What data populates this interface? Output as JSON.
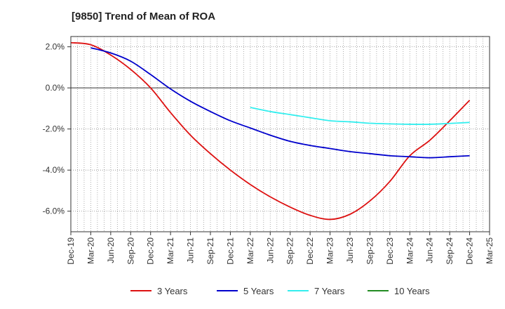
{
  "chart_data": {
    "type": "line",
    "title": "[9850]  Trend of Mean of ROA",
    "xlabel": "",
    "ylabel": "",
    "x_ticks": [
      "Dec-19",
      "Mar-20",
      "Jun-20",
      "Sep-20",
      "Dec-20",
      "Mar-21",
      "Jun-21",
      "Sep-21",
      "Dec-21",
      "Mar-22",
      "Jun-22",
      "Sep-22",
      "Dec-22",
      "Mar-23",
      "Jun-23",
      "Sep-23",
      "Dec-23",
      "Mar-24",
      "Jun-24",
      "Sep-24",
      "Dec-24",
      "Mar-25"
    ],
    "y_ticks": [
      2.0,
      0.0,
      -2.0,
      -4.0,
      -6.0
    ],
    "y_tick_labels": [
      "2.0%",
      "0.0%",
      "-2.0%",
      "-4.0%",
      "-6.0%"
    ],
    "ylim": [
      -7.0,
      2.5
    ],
    "grid": "vertical dotted, horizontal dotted, solid zero line",
    "legend_position": "bottom",
    "series": [
      {
        "name": "3 Years",
        "color": "#dd1111",
        "points": [
          [
            "Dec-19",
            2.2
          ],
          [
            "Mar-20",
            2.1
          ],
          [
            "Jun-20",
            1.6
          ],
          [
            "Sep-20",
            0.9
          ],
          [
            "Dec-20",
            0.0
          ],
          [
            "Mar-21",
            -1.2
          ],
          [
            "Jun-21",
            -2.3
          ],
          [
            "Sep-21",
            -3.2
          ],
          [
            "Dec-21",
            -4.0
          ],
          [
            "Mar-22",
            -4.7
          ],
          [
            "Jun-22",
            -5.3
          ],
          [
            "Sep-22",
            -5.8
          ],
          [
            "Dec-22",
            -6.2
          ],
          [
            "Mar-23",
            -6.4
          ],
          [
            "Jun-23",
            -6.15
          ],
          [
            "Sep-23",
            -5.5
          ],
          [
            "Dec-23",
            -4.55
          ],
          [
            "Mar-24",
            -3.3
          ],
          [
            "Jun-24",
            -2.55
          ],
          [
            "Sep-24",
            -1.6
          ],
          [
            "Dec-24",
            -0.6
          ]
        ]
      },
      {
        "name": "5 Years",
        "color": "#0000cc",
        "points": [
          [
            "Mar-20",
            1.95
          ],
          [
            "Jun-20",
            1.7
          ],
          [
            "Sep-20",
            1.3
          ],
          [
            "Dec-20",
            0.65
          ],
          [
            "Mar-21",
            -0.05
          ],
          [
            "Jun-21",
            -0.65
          ],
          [
            "Sep-21",
            -1.15
          ],
          [
            "Dec-21",
            -1.6
          ],
          [
            "Mar-22",
            -1.95
          ],
          [
            "Jun-22",
            -2.3
          ],
          [
            "Sep-22",
            -2.6
          ],
          [
            "Dec-22",
            -2.8
          ],
          [
            "Mar-23",
            -2.95
          ],
          [
            "Jun-23",
            -3.1
          ],
          [
            "Sep-23",
            -3.2
          ],
          [
            "Dec-23",
            -3.3
          ],
          [
            "Mar-24",
            -3.35
          ],
          [
            "Jun-24",
            -3.4
          ],
          [
            "Sep-24",
            -3.35
          ],
          [
            "Dec-24",
            -3.3
          ]
        ]
      },
      {
        "name": "7 Years",
        "color": "#33eeee",
        "points": [
          [
            "Mar-22",
            -0.95
          ],
          [
            "Jun-22",
            -1.15
          ],
          [
            "Sep-22",
            -1.3
          ],
          [
            "Dec-22",
            -1.45
          ],
          [
            "Mar-23",
            -1.6
          ],
          [
            "Jun-23",
            -1.65
          ],
          [
            "Sep-23",
            -1.72
          ],
          [
            "Dec-23",
            -1.75
          ],
          [
            "Mar-24",
            -1.77
          ],
          [
            "Jun-24",
            -1.77
          ],
          [
            "Sep-24",
            -1.73
          ],
          [
            "Dec-24",
            -1.68
          ]
        ]
      },
      {
        "name": "10 Years",
        "color": "#228b22",
        "points": []
      }
    ]
  }
}
